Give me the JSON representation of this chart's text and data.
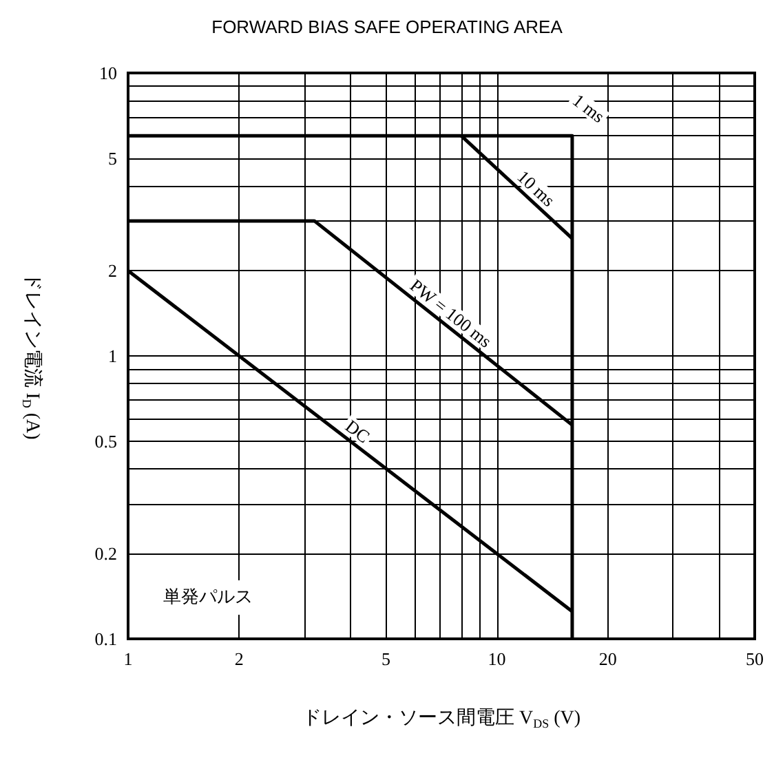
{
  "chart_data": {
    "type": "line",
    "title": "FORWARD BIAS SAFE OPERATING AREA",
    "xlabel": "ドレイン・ソース間電圧 V$_{DS}$ (V)",
    "ylabel": "ドレイン電流 I$_{D}$ (A)",
    "log": "xy",
    "grid": true,
    "legend": false,
    "marker": "none",
    "line_style": "solid",
    "xlim": [
      1,
      50
    ],
    "ylim": [
      0.1,
      10
    ],
    "xticks": [
      1,
      2,
      {
        "value": 3,
        "label": null
      },
      {
        "value": 4,
        "label": null
      },
      5,
      {
        "value": 6,
        "label": null
      },
      {
        "value": 7,
        "label": null
      },
      {
        "value": 8,
        "label": null
      },
      {
        "value": 9,
        "label": null
      },
      10,
      20,
      {
        "value": 30,
        "label": null
      },
      {
        "value": 40,
        "label": null
      },
      50
    ],
    "yticks": [
      0.1,
      0.2,
      {
        "value": 0.3,
        "label": null
      },
      {
        "value": 0.4,
        "label": null
      },
      0.5,
      {
        "value": 0.6,
        "label": null
      },
      {
        "value": 0.7,
        "label": null
      },
      {
        "value": 0.8,
        "label": null
      },
      {
        "value": 0.9,
        "label": null
      },
      1,
      2,
      {
        "value": 3,
        "label": null
      },
      {
        "value": 4,
        "label": null
      },
      5,
      {
        "value": 6,
        "label": null
      },
      {
        "value": 7,
        "label": null
      },
      {
        "value": 8,
        "label": null
      },
      {
        "value": 9,
        "label": null
      },
      10
    ],
    "series": [
      {
        "name": "1 ms",
        "color": "#000000",
        "x": [
          1,
          16,
          16
        ],
        "values": [
          6,
          6,
          0.1
        ]
      },
      {
        "name": "10 ms",
        "color": "#000000",
        "x": [
          8,
          16
        ],
        "values": [
          6,
          2.6
        ]
      },
      {
        "name": "PW = 100 ms",
        "color": "#000000",
        "x": [
          1,
          3.2,
          16
        ],
        "values": [
          3,
          3,
          0.57
        ]
      },
      {
        "name": "DC",
        "color": "#000000",
        "x": [
          1,
          16
        ],
        "values": [
          2,
          0.125
        ]
      }
    ],
    "annotations": [
      "単発パルス"
    ]
  }
}
